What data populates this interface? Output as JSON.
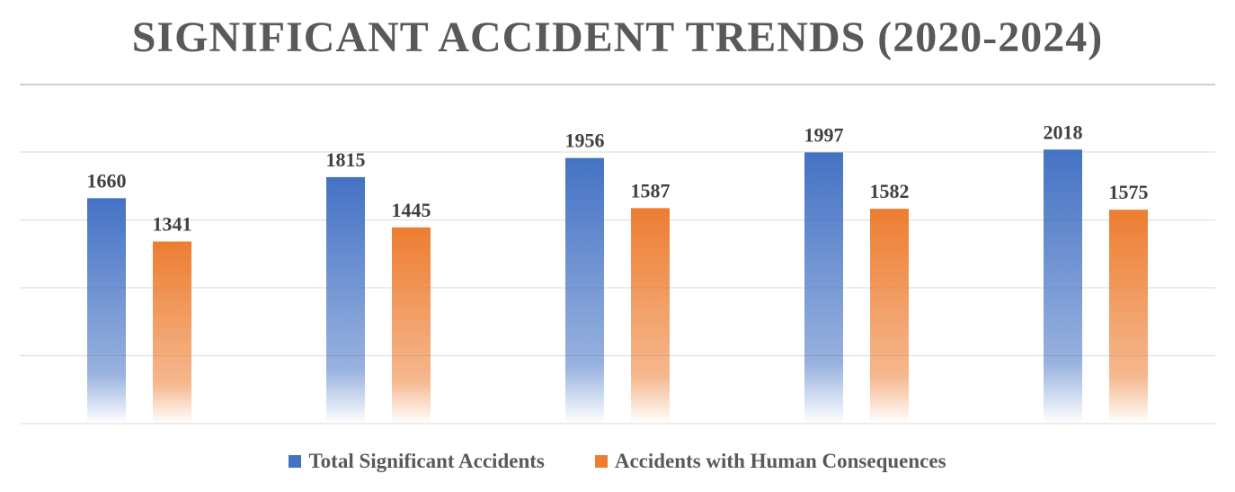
{
  "chart_data": {
    "type": "bar",
    "title": "SIGNIFICANT ACCIDENT TRENDS (2020-2024)",
    "categories": [
      "",
      "",
      "",
      "",
      ""
    ],
    "series": [
      {
        "name": "Total Significant Accidents",
        "color": "#4472C4",
        "values": [
          1660,
          1815,
          1956,
          1997,
          2018
        ]
      },
      {
        "name": "Accidents with Human Consequences",
        "color": "#ED7D31",
        "values": [
          1341,
          1445,
          1587,
          1582,
          1575
        ]
      }
    ],
    "ylim": [
      0,
      2000
    ],
    "grid": true,
    "legend": "bottom",
    "xlabel": "",
    "ylabel": ""
  }
}
